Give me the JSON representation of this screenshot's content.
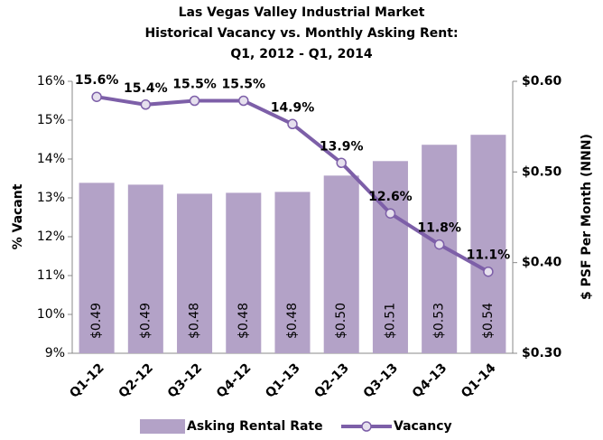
{
  "chart_data": {
    "type": "bar",
    "title": [
      "Las Vegas Valley Industrial Market",
      "Historical Vacancy vs. Monthly Asking Rent:",
      "Q1, 2012  - Q1, 2014"
    ],
    "ylabel": "% Vacant",
    "y2label": "$ PSF Per Month (NNN)",
    "categories": [
      "Q1-12",
      "Q2-12",
      "Q3-12",
      "Q4-12",
      "Q1-13",
      "Q2-13",
      "Q3-13",
      "Q4-13",
      "Q1-14"
    ],
    "series": [
      {
        "name": "Asking Rental Rate",
        "type": "bar",
        "axis": "y2",
        "color": "#b3a2c7",
        "values": [
          0.488,
          0.486,
          0.476,
          0.477,
          0.478,
          0.496,
          0.512,
          0.53,
          0.541
        ],
        "value_labels": [
          "$0.49",
          "$0.49",
          "$0.48",
          "$0.48",
          "$0.48",
          "$0.50",
          "$0.51",
          "$0.53",
          "$0.54"
        ]
      },
      {
        "name": "Vacancy",
        "type": "line",
        "color": "#7d5fa8",
        "values": [
          15.6,
          15.4,
          15.5,
          15.5,
          14.9,
          13.9,
          12.6,
          11.8,
          11.1
        ],
        "value_labels": [
          "15.6%",
          "15.4%",
          "15.5%",
          "15.5%",
          "14.9%",
          "13.9%",
          "12.6%",
          "11.8%",
          "11.1%"
        ]
      }
    ],
    "ylim": [
      9,
      16
    ],
    "yticks": [
      {
        "value": 9,
        "label": "9%"
      },
      {
        "value": 10,
        "label": "10%"
      },
      {
        "value": 11,
        "label": "11%"
      },
      {
        "value": 12,
        "label": "12%"
      },
      {
        "value": 13,
        "label": "13%"
      },
      {
        "value": 14,
        "label": "14%"
      },
      {
        "value": 15,
        "label": "15%"
      },
      {
        "value": 16,
        "label": "16%"
      }
    ],
    "y2lim": [
      0.3,
      0.6
    ],
    "y2ticks": [
      {
        "value": 0.3,
        "label": "$0.30"
      },
      {
        "value": 0.4,
        "label": "$0.40"
      },
      {
        "value": 0.5,
        "label": "$0.50"
      },
      {
        "value": 0.6,
        "label": "$0.60"
      }
    ],
    "grid": false
  }
}
